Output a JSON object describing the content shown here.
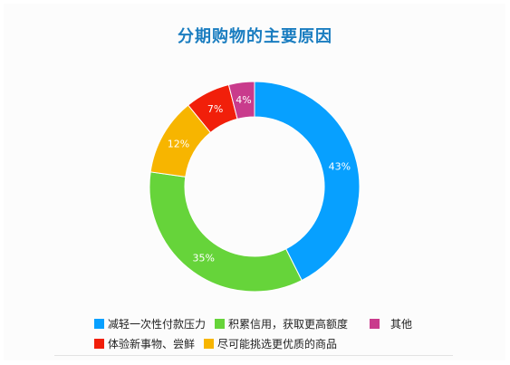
{
  "chart_data": {
    "type": "pie",
    "title": "分期购物的主要原因",
    "categories": [
      "减轻一次性付款压力",
      "积累信用，获取更高额度",
      "其他",
      "体验新事物、尝鲜",
      "尽可能挑选更优质的商品"
    ],
    "values": [
      43,
      35,
      4,
      7,
      12
    ],
    "value_labels": [
      "43%",
      "35%",
      "4%",
      "7%",
      "12%"
    ],
    "slice_order": [
      0,
      1,
      4,
      3,
      2
    ],
    "colors": [
      "#07a0ff",
      "#66d43a",
      "#c93b8c",
      "#f11f0a",
      "#f7b500"
    ],
    "legend_position": "bottom"
  }
}
